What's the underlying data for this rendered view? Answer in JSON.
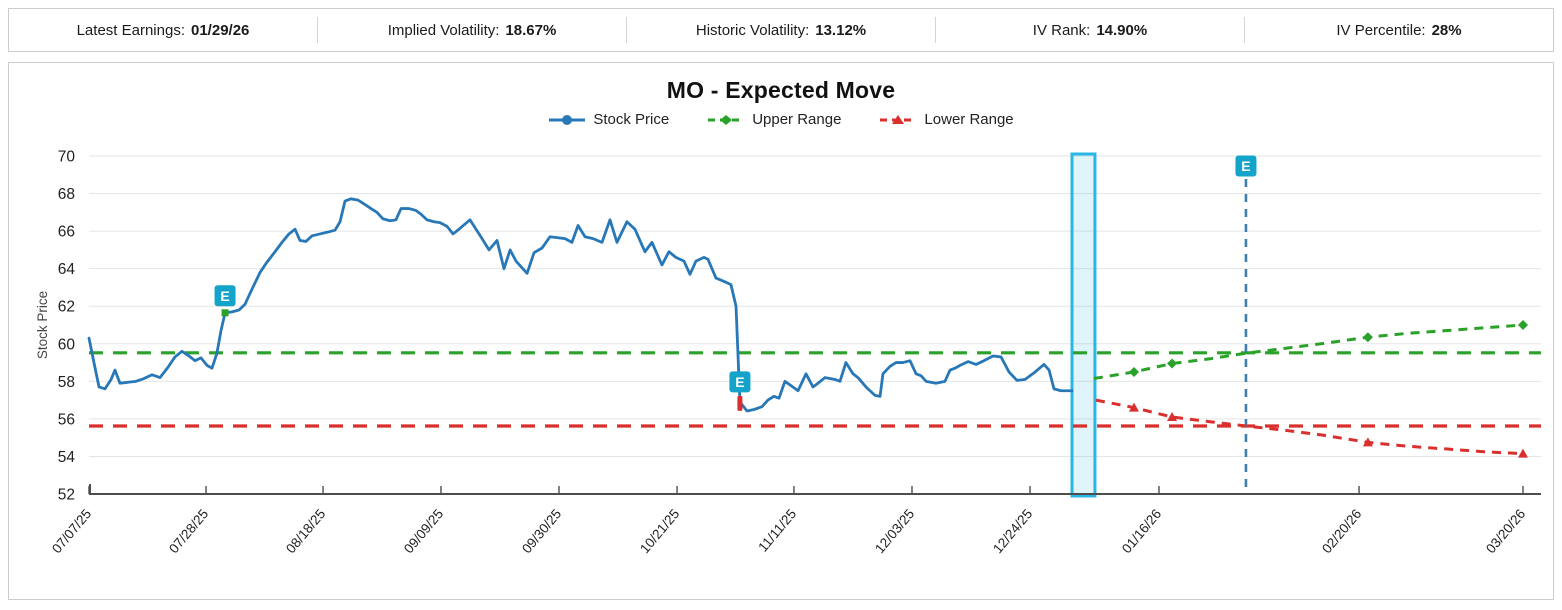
{
  "stats_bar": {
    "items": [
      {
        "label": "Latest Earnings:",
        "value": "01/29/26"
      },
      {
        "label": "Implied Volatility:",
        "value": "18.67%"
      },
      {
        "label": "Historic Volatility:",
        "value": "13.12%"
      },
      {
        "label": "IV Rank:",
        "value": "14.90%"
      },
      {
        "label": "IV Percentile:",
        "value": "28%"
      }
    ]
  },
  "chart_data": {
    "type": "line",
    "title": "MO - Expected Move",
    "xlabel": "",
    "ylabel": "Stock Price",
    "ylim": [
      52,
      70
    ],
    "ytick_step": 2,
    "grid": true,
    "legend_position": "top-center",
    "legend": [
      {
        "name": "Stock Price",
        "color": "#2878b8",
        "style": "solid",
        "marker": "circle"
      },
      {
        "name": "Upper Range",
        "color": "#2aa22a",
        "style": "dashed",
        "marker": "diamond"
      },
      {
        "name": "Lower Range",
        "color": "#d9302e",
        "style": "dashed",
        "marker": "triangle"
      }
    ],
    "x_ticks": [
      {
        "label": "07/07/25",
        "f": 0.0
      },
      {
        "label": "07/28/25",
        "f": 0.0806
      },
      {
        "label": "08/18/25",
        "f": 0.1612
      },
      {
        "label": "09/09/25",
        "f": 0.2424
      },
      {
        "label": "09/30/25",
        "f": 0.3237
      },
      {
        "label": "10/21/25",
        "f": 0.405
      },
      {
        "label": "11/11/25",
        "f": 0.4855
      },
      {
        "label": "12/03/25",
        "f": 0.5668
      },
      {
        "label": "12/24/25",
        "f": 0.6481
      },
      {
        "label": "01/16/26",
        "f": 0.7369
      },
      {
        "label": "02/20/26",
        "f": 0.8747
      },
      {
        "label": "03/20/26",
        "f": 0.9876
      }
    ],
    "upper_range_level": 59.52,
    "lower_range_level": 55.62,
    "highlight_band": {
      "f0": 0.677,
      "f1": 0.6928,
      "border_color": "#29b7e5",
      "fill_color": "rgba(41,183,229,0.15)"
    },
    "earnings_line": {
      "f": 0.7968,
      "color": "#3e7fae",
      "label": "E"
    },
    "e_badge": {
      "text": "E",
      "bg": "#14a3c9"
    },
    "series": {
      "stock_price": [
        [
          0.0,
          60.3
        ],
        [
          0.0034,
          59.0
        ],
        [
          0.0069,
          57.7
        ],
        [
          0.011,
          57.6
        ],
        [
          0.0152,
          58.1
        ],
        [
          0.0179,
          58.6
        ],
        [
          0.0213,
          57.9
        ],
        [
          0.0269,
          57.95
        ],
        [
          0.0324,
          58.0
        ],
        [
          0.0379,
          58.15
        ],
        [
          0.0434,
          58.35
        ],
        [
          0.0489,
          58.2
        ],
        [
          0.0544,
          58.75
        ],
        [
          0.0592,
          59.3
        ],
        [
          0.064,
          59.6
        ],
        [
          0.0689,
          59.35
        ],
        [
          0.073,
          59.1
        ],
        [
          0.0771,
          59.25
        ],
        [
          0.0813,
          58.85
        ],
        [
          0.0847,
          58.7
        ],
        [
          0.0881,
          59.5
        ],
        [
          0.0909,
          60.7
        ],
        [
          0.0937,
          61.65
        ],
        [
          0.0985,
          61.7
        ],
        [
          0.1033,
          61.8
        ],
        [
          0.1074,
          62.1
        ],
        [
          0.1122,
          62.9
        ],
        [
          0.1178,
          63.8
        ],
        [
          0.1226,
          64.35
        ],
        [
          0.1281,
          64.9
        ],
        [
          0.1329,
          65.4
        ],
        [
          0.1377,
          65.85
        ],
        [
          0.1419,
          66.1
        ],
        [
          0.1453,
          65.5
        ],
        [
          0.1494,
          65.45
        ],
        [
          0.1536,
          65.75
        ],
        [
          0.1591,
          65.85
        ],
        [
          0.1646,
          65.95
        ],
        [
          0.1694,
          66.05
        ],
        [
          0.1729,
          66.5
        ],
        [
          0.1763,
          67.6
        ],
        [
          0.1804,
          67.72
        ],
        [
          0.1853,
          67.65
        ],
        [
          0.1894,
          67.45
        ],
        [
          0.1942,
          67.2
        ],
        [
          0.1983,
          67.0
        ],
        [
          0.2025,
          66.65
        ],
        [
          0.2073,
          66.55
        ],
        [
          0.2114,
          66.6
        ],
        [
          0.2149,
          67.2
        ],
        [
          0.2204,
          67.2
        ],
        [
          0.2252,
          67.1
        ],
        [
          0.2287,
          66.9
        ],
        [
          0.2328,
          66.6
        ],
        [
          0.2376,
          66.5
        ],
        [
          0.2417,
          66.45
        ],
        [
          0.2466,
          66.25
        ],
        [
          0.2507,
          65.85
        ],
        [
          0.2548,
          66.1
        ],
        [
          0.2624,
          66.6
        ],
        [
          0.2707,
          65.6
        ],
        [
          0.2755,
          65.0
        ],
        [
          0.281,
          65.5
        ],
        [
          0.2858,
          64.0
        ],
        [
          0.29,
          65.0
        ],
        [
          0.2941,
          64.4
        ],
        [
          0.3017,
          63.75
        ],
        [
          0.3065,
          64.85
        ],
        [
          0.312,
          65.1
        ],
        [
          0.3175,
          65.7
        ],
        [
          0.3278,
          65.6
        ],
        [
          0.3326,
          65.4
        ],
        [
          0.3368,
          66.3
        ],
        [
          0.3416,
          65.7
        ],
        [
          0.3471,
          65.6
        ],
        [
          0.3533,
          65.4
        ],
        [
          0.3588,
          66.6
        ],
        [
          0.3636,
          65.4
        ],
        [
          0.3705,
          66.5
        ],
        [
          0.376,
          66.1
        ],
        [
          0.3829,
          64.9
        ],
        [
          0.3877,
          65.4
        ],
        [
          0.3946,
          64.2
        ],
        [
          0.3994,
          64.9
        ],
        [
          0.4042,
          64.6
        ],
        [
          0.4098,
          64.4
        ],
        [
          0.4139,
          63.7
        ],
        [
          0.418,
          64.4
        ],
        [
          0.4235,
          64.6
        ],
        [
          0.4263,
          64.5
        ],
        [
          0.4318,
          63.5
        ],
        [
          0.438,
          63.3
        ],
        [
          0.4421,
          63.15
        ],
        [
          0.4456,
          62.0
        ],
        [
          0.4483,
          56.9
        ],
        [
          0.4532,
          56.42
        ],
        [
          0.458,
          56.5
        ],
        [
          0.4635,
          56.65
        ],
        [
          0.4676,
          57.0
        ],
        [
          0.4717,
          57.2
        ],
        [
          0.4752,
          57.1
        ],
        [
          0.4793,
          58.0
        ],
        [
          0.4848,
          57.7
        ],
        [
          0.4883,
          57.5
        ],
        [
          0.4938,
          58.4
        ],
        [
          0.4986,
          57.7
        ],
        [
          0.5021,
          57.9
        ],
        [
          0.5069,
          58.2
        ],
        [
          0.5138,
          58.1
        ],
        [
          0.5172,
          58.0
        ],
        [
          0.5213,
          59.0
        ],
        [
          0.5262,
          58.4
        ],
        [
          0.5296,
          58.2
        ],
        [
          0.5351,
          57.7
        ],
        [
          0.5413,
          57.25
        ],
        [
          0.5448,
          57.2
        ],
        [
          0.5468,
          58.4
        ],
        [
          0.5517,
          58.8
        ],
        [
          0.5558,
          59.0
        ],
        [
          0.5606,
          59.0
        ],
        [
          0.5654,
          59.1
        ],
        [
          0.5696,
          58.4
        ],
        [
          0.573,
          58.3
        ],
        [
          0.5765,
          58.0
        ],
        [
          0.5833,
          57.9
        ],
        [
          0.5895,
          58.0
        ],
        [
          0.593,
          58.6
        ],
        [
          0.5964,
          58.7
        ],
        [
          0.5999,
          58.85
        ],
        [
          0.6054,
          59.05
        ],
        [
          0.6109,
          58.9
        ],
        [
          0.6164,
          59.1
        ],
        [
          0.6226,
          59.35
        ],
        [
          0.6281,
          59.3
        ],
        [
          0.6336,
          58.5
        ],
        [
          0.6391,
          58.05
        ],
        [
          0.6446,
          58.1
        ],
        [
          0.6508,
          58.45
        ],
        [
          0.6577,
          58.9
        ],
        [
          0.6612,
          58.6
        ],
        [
          0.6646,
          57.6
        ],
        [
          0.6694,
          57.5
        ],
        [
          0.677,
          57.5
        ]
      ],
      "upper_range": [
        [
          0.6921,
          58.15
        ],
        [
          0.7197,
          58.5
        ],
        [
          0.7459,
          58.95
        ],
        [
          0.772,
          59.2
        ],
        [
          0.7968,
          59.5
        ],
        [
          0.823,
          59.75
        ],
        [
          0.8485,
          60.0
        ],
        [
          0.8808,
          60.35
        ],
        [
          0.907,
          60.55
        ],
        [
          0.9345,
          60.7
        ],
        [
          0.9607,
          60.85
        ],
        [
          0.9876,
          61.0
        ]
      ],
      "lower_range": [
        [
          0.6935,
          57.0
        ],
        [
          0.7197,
          56.6
        ],
        [
          0.7459,
          56.1
        ],
        [
          0.772,
          55.85
        ],
        [
          0.7968,
          55.62
        ],
        [
          0.823,
          55.4
        ],
        [
          0.8485,
          55.15
        ],
        [
          0.8808,
          54.75
        ],
        [
          0.907,
          54.55
        ],
        [
          0.9345,
          54.4
        ],
        [
          0.9607,
          54.25
        ],
        [
          0.9876,
          54.15
        ]
      ],
      "marker_indices": [
        1,
        2,
        7,
        11
      ]
    },
    "earnings_markers": [
      {
        "f": 0.0937,
        "price": 61.65,
        "marker": "green-square"
      },
      {
        "f": 0.4483,
        "price": 56.85,
        "marker": "red-bar"
      }
    ]
  }
}
